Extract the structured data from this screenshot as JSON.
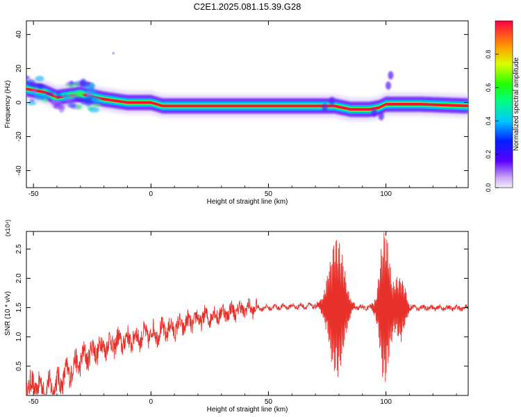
{
  "title": "C2E1.2025.081.15.39.G28",
  "chart_data": [
    {
      "type": "heatmap",
      "xlabel": "Height of straight line (km)",
      "ylabel": "Frequency (Hz)",
      "xlim": [
        -53,
        135
      ],
      "ylim": [
        -50,
        48
      ],
      "xticks": [
        -50,
        0,
        50,
        100
      ],
      "yticks": [
        -40,
        -20,
        0,
        20,
        40
      ],
      "colorbar": {
        "label": "Normalized spectral amplitude",
        "range": [
          0,
          1
        ],
        "ticks": [
          0.0,
          0.2,
          0.4,
          0.6,
          0.8
        ]
      },
      "ridge": [
        {
          "x": -53,
          "y": 8
        },
        {
          "x": -45,
          "y": 6
        },
        {
          "x": -40,
          "y": 3
        },
        {
          "x": -30,
          "y": 5
        },
        {
          "x": -20,
          "y": 2
        },
        {
          "x": -10,
          "y": 0
        },
        {
          "x": 0,
          "y": 0
        },
        {
          "x": 5,
          "y": -2
        },
        {
          "x": 20,
          "y": -2
        },
        {
          "x": 50,
          "y": -2
        },
        {
          "x": 73,
          "y": -2
        },
        {
          "x": 78,
          "y": -2
        },
        {
          "x": 85,
          "y": -4
        },
        {
          "x": 93,
          "y": -4
        },
        {
          "x": 97,
          "y": -3
        },
        {
          "x": 100,
          "y": -1
        },
        {
          "x": 115,
          "y": -1
        },
        {
          "x": 135,
          "y": -2
        }
      ]
    },
    {
      "type": "line",
      "xlabel": "Height of straight line (km)",
      "ylabel": "SNR (10 * v/v)",
      "scale_label": "(x10⁴)",
      "xlim": [
        -53,
        135
      ],
      "ylim": [
        0,
        2.8
      ],
      "xticks": [
        -50,
        0,
        50,
        100
      ],
      "yticks": [
        0.5,
        1.0,
        1.5,
        2.0,
        2.5
      ],
      "series": [
        {
          "color": "#e8302a",
          "envelope": [
            {
              "x": -53,
              "y": 0.15
            },
            {
              "x": -45,
              "y": 0.12
            },
            {
              "x": -40,
              "y": 0.18
            },
            {
              "x": -35,
              "y": 0.4
            },
            {
              "x": -30,
              "y": 0.6
            },
            {
              "x": -25,
              "y": 0.75
            },
            {
              "x": -20,
              "y": 0.85
            },
            {
              "x": -10,
              "y": 0.95
            },
            {
              "x": 0,
              "y": 1.05
            },
            {
              "x": 10,
              "y": 1.15
            },
            {
              "x": 20,
              "y": 1.3
            },
            {
              "x": 30,
              "y": 1.4
            },
            {
              "x": 40,
              "y": 1.48
            },
            {
              "x": 50,
              "y": 1.5
            },
            {
              "x": 60,
              "y": 1.52
            },
            {
              "x": 70,
              "y": 1.53
            },
            {
              "x": 80,
              "y": 1.5
            },
            {
              "x": 90,
              "y": 1.5
            },
            {
              "x": 100,
              "y": 1.5
            },
            {
              "x": 110,
              "y": 1.5
            },
            {
              "x": 135,
              "y": 1.49
            }
          ],
          "bursts": [
            {
              "center": 79,
              "width": 6,
              "amplitude": 1.2
            },
            {
              "center": 99.5,
              "width": 4,
              "amplitude": 1.3
            },
            {
              "center": 106,
              "width": 4,
              "amplitude": 0.55
            }
          ]
        }
      ]
    }
  ]
}
